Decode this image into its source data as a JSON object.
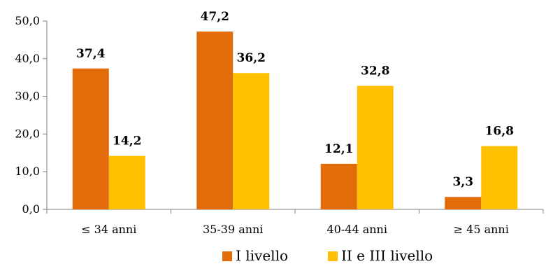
{
  "chart_data": {
    "type": "bar",
    "categories": [
      "≤ 34 anni",
      "35-39 anni",
      "40-44 anni",
      "≥ 45 anni"
    ],
    "series": [
      {
        "name": "I livello",
        "color": "#E36C0A",
        "values": [
          37.4,
          47.2,
          12.1,
          3.3
        ],
        "labels": [
          "37,4",
          "47,2",
          "12,1",
          "3,3"
        ]
      },
      {
        "name": "II e III livello",
        "color": "#FFC000",
        "values": [
          14.2,
          36.2,
          32.8,
          16.8
        ],
        "labels": [
          "14,2",
          "36,2",
          "32,8",
          "16,8"
        ]
      }
    ],
    "ylim": [
      0,
      50
    ],
    "yticks": [
      0,
      10,
      20,
      30,
      40,
      50
    ],
    "ytick_labels": [
      "0,0",
      "10,0",
      "20,0",
      "30,0",
      "40,0",
      "50,0"
    ],
    "grid": false,
    "legend_position": "bottom"
  }
}
